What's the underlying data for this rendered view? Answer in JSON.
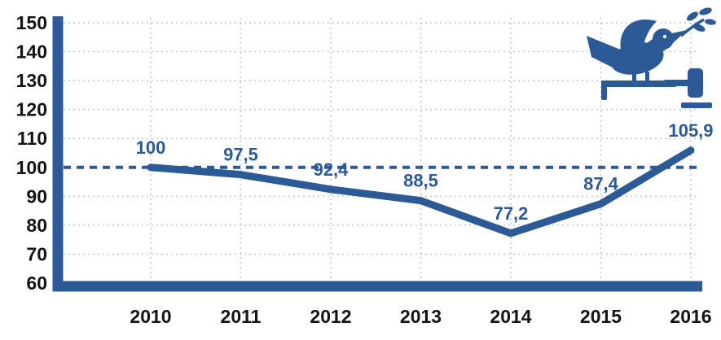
{
  "chart_data": {
    "type": "line",
    "title": "",
    "xlabel": "",
    "ylabel": "",
    "categories": [
      "2010",
      "2011",
      "2012",
      "2013",
      "2014",
      "2015",
      "2016"
    ],
    "series": [
      {
        "name": "index-base-100-in-2010",
        "values": [
          100,
          97.5,
          92.4,
          88.5,
          77.2,
          87.4,
          105.9
        ],
        "point_labels": [
          "100",
          "97,5",
          "92,4",
          "88,5",
          "77,2",
          "87,4",
          "105,9"
        ]
      }
    ],
    "ylim": [
      60,
      150
    ],
    "ytick_step": 10,
    "ytick_labels": [
      "60",
      "70",
      "80",
      "90",
      "100",
      "110",
      "120",
      "130",
      "140",
      "150"
    ],
    "reference_line": {
      "value": 100,
      "style": "dashed"
    },
    "grid": "dotted",
    "legend": "none",
    "icons": [
      "dove-with-olive-branch-icon",
      "gavel-icon"
    ],
    "colors": {
      "line": "#2b5a96",
      "axis": "#2b5a96",
      "point_labels": "#2b5a96",
      "reference": "#2b5a96",
      "tick_labels": "#141414",
      "grid": "#c6c6c6",
      "background": "#ffffff",
      "icon": "#2b5a96"
    }
  }
}
